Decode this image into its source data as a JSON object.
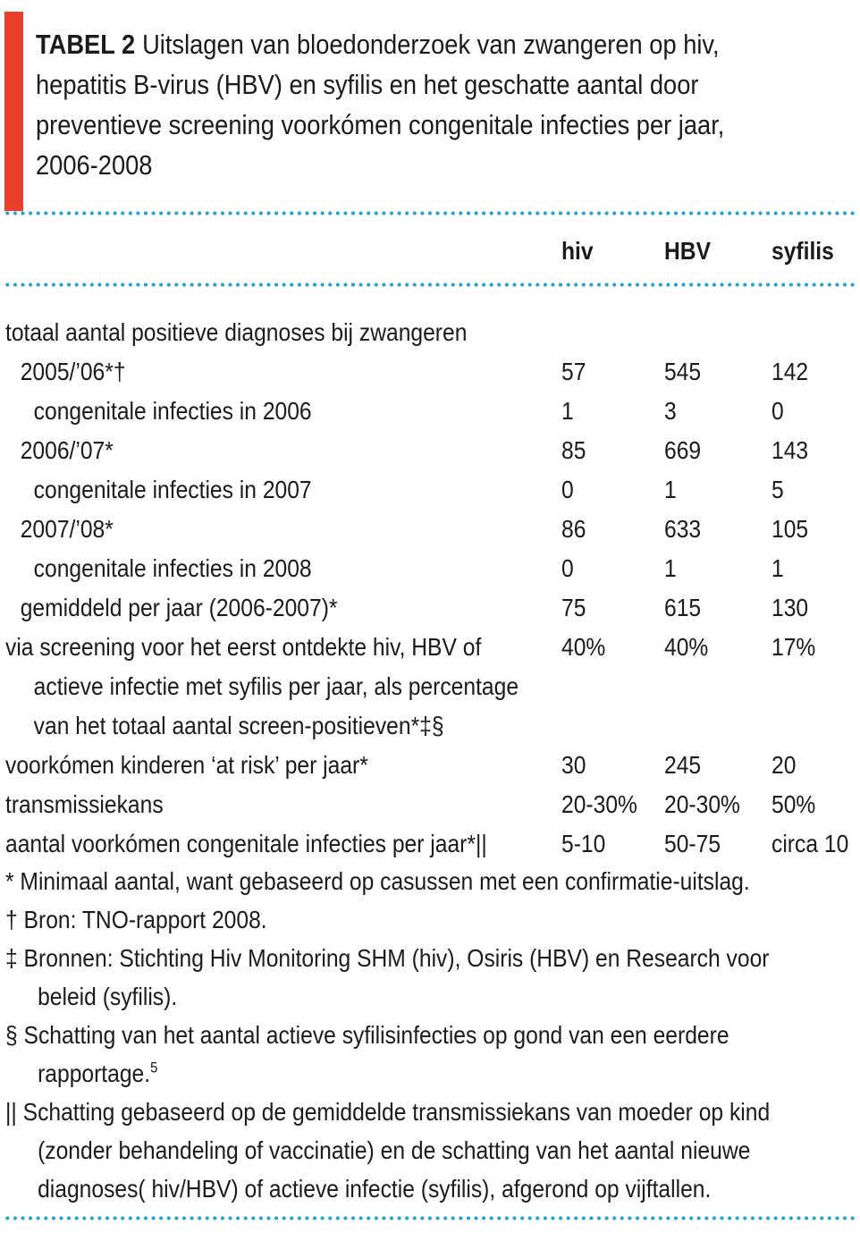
{
  "colors": {
    "accent_red": "#e8402f",
    "dotted_rule": "#2aa1c6",
    "text": "#1c1b1a"
  },
  "title": {
    "bold": "TABEL 2",
    "line1_rest": "Uitslagen van bloedonderzoek van zwangeren op hiv,",
    "line2": "hepatitis B-virus (HBV) en syfilis en het geschatte aantal door",
    "line3": "preventieve screening voorkómen congenitale infecties per jaar,",
    "line4": "2006-2008"
  },
  "table": {
    "columns": {
      "c1": "hiv",
      "c2": "HBV",
      "c3": "syfilis"
    },
    "rows": [
      {
        "label": "totaal aantal positieve diagnoses bij zwangeren",
        "values": [
          "",
          "",
          ""
        ]
      },
      {
        "label": "2005/’06*†",
        "values": [
          "57",
          "545",
          "142"
        ]
      },
      {
        "label": "congenitale infecties in 2006",
        "values": [
          "1",
          "3",
          "0"
        ]
      },
      {
        "label": "2006/’07*",
        "values": [
          "85",
          "669",
          "143"
        ]
      },
      {
        "label": "congenitale infecties in 2007",
        "values": [
          "0",
          "1",
          "5"
        ]
      },
      {
        "label": "2007/’08*",
        "values": [
          "86",
          "633",
          "105"
        ]
      },
      {
        "label": "congenitale infecties in 2008",
        "values": [
          "0",
          "1",
          "1"
        ]
      },
      {
        "label": "gemiddeld per jaar (2006-2007)*",
        "values": [
          "75",
          "615",
          "130"
        ]
      },
      {
        "label": "via screening voor het eerst ontdekte hiv, HBV of",
        "label_line2": "actieve infectie met syfilis per jaar, als percentage",
        "label_line3": "van het totaal aantal screen-positieven*‡§",
        "values": [
          "40%",
          "40%",
          "17%"
        ]
      },
      {
        "label": "voorkómen kinderen ‘at risk’ per jaar*",
        "values": [
          "30",
          "245",
          "20"
        ]
      },
      {
        "label": "transmissiekans",
        "values": [
          "20-30%",
          "20-30%",
          "50%"
        ]
      },
      {
        "label": "aantal voorkómen congenitale infecties per jaar*||",
        "values": [
          "5-10",
          "50-75",
          "circa 10"
        ]
      }
    ]
  },
  "footnotes": {
    "fn1_line1": "* Minimaal aantal, want gebaseerd op casussen met een confirmatie-uitslag.",
    "fn2_line1": "† Bron: TNO-rapport 2008.",
    "fn3_line1": "‡ Bronnen: Stichting Hiv Monitoring SHM (hiv), Osiris (HBV) en Research voor",
    "fn3_line2": "beleid (syfilis).",
    "fn4_line1": "§ Schatting van het aantal actieve syfilisinfecties op gond van een eerdere",
    "fn4_cont_text": "rapportage.",
    "fn4_cont_sup": "5",
    "fn5_line1": "|| Schatting gebaseerd op de gemiddelde transmissiekans van moeder op kind",
    "fn5_line2": "(zonder behandeling of vaccinatie) en de schatting van het aantal nieuwe",
    "fn5_line3": "diagnoses( hiv/HBV) of actieve infectie (syfilis), afgerond op vijftallen."
  }
}
